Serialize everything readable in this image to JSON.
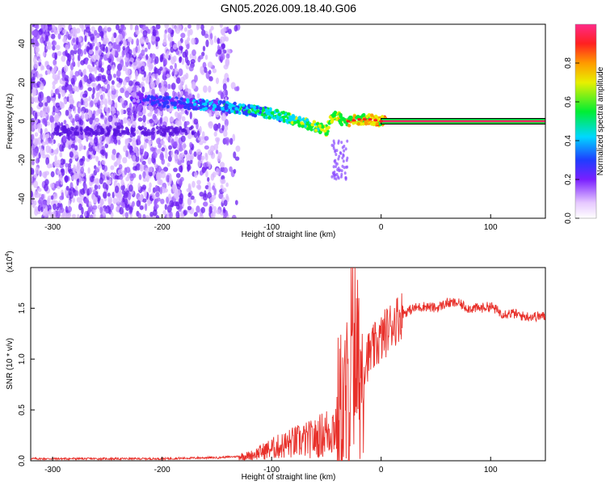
{
  "title": "GN05.2026.009.18.40.G06",
  "chart_data": [
    {
      "type": "heatmap",
      "title": "GN05.2026.009.18.40.G06",
      "xlabel": "Height of straight line (km)",
      "ylabel": "Frequency (Hz)",
      "xlim": [
        -320,
        150
      ],
      "ylim": [
        -50,
        50
      ],
      "xticks": [
        -300,
        -200,
        -100,
        0,
        100
      ],
      "yticks": [
        -40,
        -20,
        0,
        20,
        40
      ],
      "ridge": {
        "x": [
          -225,
          -200,
          -175,
          -150,
          -125,
          -100,
          -75,
          -60,
          -50,
          -45,
          -40,
          -35,
          -30,
          -20,
          -10,
          0,
          50,
          100,
          150
        ],
        "frequency": [
          12,
          10,
          9,
          8,
          6,
          4,
          0,
          -3,
          -5,
          2,
          3,
          0,
          0,
          1,
          1,
          0,
          0,
          0,
          0
        ]
      },
      "colorbar": {
        "label": "Normalized spectral amplitude",
        "ticks": [
          0.0,
          0.2,
          0.4,
          0.6,
          0.8
        ],
        "range": [
          0,
          1
        ]
      }
    },
    {
      "type": "line",
      "xlabel": "Height of straight line (km)",
      "ylabel": "SNR (10 * v/v)",
      "scale_label": "(x10",
      "scale_exp": "4",
      "xlim": [
        -320,
        150
      ],
      "ylim": [
        0,
        1.9
      ],
      "xticks": [
        -300,
        -200,
        -100,
        0,
        100
      ],
      "yticks": [
        0.0,
        0.5,
        1.0,
        1.5
      ],
      "series": [
        {
          "name": "SNR",
          "color": "#e8302a",
          "x": [
            -320,
            -250,
            -200,
            -160,
            -150,
            -120,
            -100,
            -80,
            -60,
            -50,
            -40,
            -35,
            -30,
            -28,
            -25,
            -22,
            -20,
            -15,
            -10,
            0,
            10,
            20,
            30,
            40,
            50,
            60,
            70,
            80,
            90,
            100,
            110,
            120,
            130,
            140,
            150
          ],
          "values": [
            0.02,
            0.02,
            0.02,
            0.03,
            0.03,
            0.05,
            0.12,
            0.18,
            0.22,
            0.28,
            0.35,
            0.45,
            0.6,
            0.75,
            0.9,
            0.95,
            0.85,
            1.0,
            1.05,
            1.2,
            1.35,
            1.45,
            1.5,
            1.52,
            1.5,
            1.55,
            1.55,
            1.5,
            1.5,
            1.52,
            1.45,
            1.45,
            1.42,
            1.42,
            1.42
          ]
        }
      ]
    }
  ]
}
